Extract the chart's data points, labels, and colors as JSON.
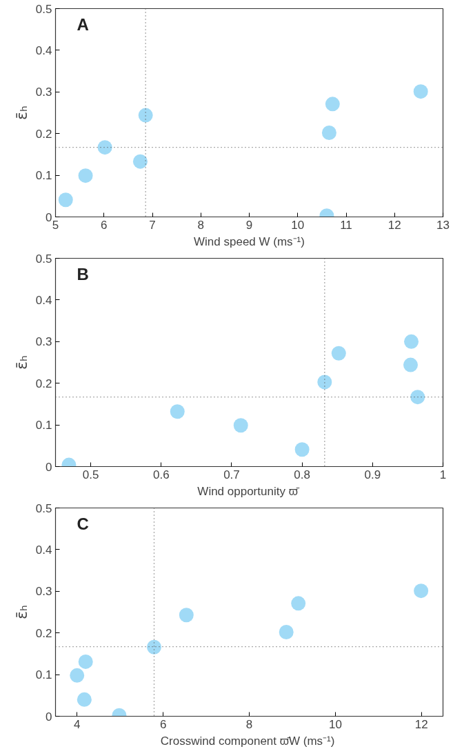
{
  "chart_data": [
    {
      "type": "scatter",
      "title": "A",
      "xlabel": "Wind speed W (ms⁻¹)",
      "ylabel": "ε̄ₕ",
      "marker": "circle",
      "grid": false,
      "xlim": [
        5,
        13
      ],
      "xticks": [
        5,
        6,
        7,
        8,
        9,
        10,
        11,
        12,
        13
      ],
      "ylim": [
        0,
        0.5
      ],
      "yticks": [
        0,
        0.1,
        0.2,
        0.3,
        0.4,
        0.5
      ],
      "series": [
        {
          "color": "#a0daf6",
          "x": [
            5.21,
            5.62,
            6.02,
            6.75,
            6.86,
            10.6,
            10.65,
            10.72,
            12.54
          ],
          "values": [
            0.041,
            0.099,
            0.167,
            0.133,
            0.244,
            0.003,
            0.202,
            0.271,
            0.301
          ]
        }
      ],
      "ref_lines": [
        {
          "axis": "y",
          "value": 0.167,
          "color": "#555555",
          "line_style": "dotted"
        },
        {
          "axis": "x",
          "value": 6.86,
          "color": "#555555",
          "line_style": "dotted"
        }
      ]
    },
    {
      "type": "scatter",
      "title": "B",
      "xlabel": "Wind opportunity  ϖ̄",
      "ylabel": "ε̄ₕ",
      "marker": "circle",
      "grid": false,
      "xlim": [
        0.45,
        1
      ],
      "xticks": [
        0.5,
        0.6,
        0.7,
        0.8,
        0.9,
        1
      ],
      "ylim": [
        0,
        0.5
      ],
      "yticks": [
        0,
        0.1,
        0.2,
        0.3,
        0.4,
        0.5
      ],
      "series": [
        {
          "color": "#a0daf6",
          "x": [
            0.469,
            0.623,
            0.713,
            0.8,
            0.832,
            0.852,
            0.955,
            0.954,
            0.964
          ],
          "values": [
            0.004,
            0.132,
            0.099,
            0.041,
            0.203,
            0.272,
            0.3,
            0.244,
            0.167
          ]
        }
      ],
      "ref_lines": [
        {
          "axis": "y",
          "value": 0.167,
          "color": "#555555",
          "line_style": "dotted"
        },
        {
          "axis": "x",
          "value": 0.832,
          "color": "#555555",
          "line_style": "dotted"
        }
      ]
    },
    {
      "type": "scatter",
      "title": "C",
      "xlabel": "Crosswind component  ϖ̄W (ms⁻¹)",
      "ylabel": "ε̄ₕ",
      "marker": "circle",
      "grid": false,
      "xlim": [
        3.5,
        12.5
      ],
      "xticks": [
        4,
        6,
        8,
        10,
        12
      ],
      "ylim": [
        0,
        0.5
      ],
      "yticks": [
        0,
        0.1,
        0.2,
        0.3,
        0.4,
        0.5
      ],
      "series": [
        {
          "color": "#a0daf6",
          "x": [
            4.0,
            4.2,
            4.17,
            4.98,
            5.79,
            6.54,
            8.86,
            9.14,
            11.99
          ],
          "values": [
            0.098,
            0.131,
            0.04,
            0.002,
            0.166,
            0.243,
            0.202,
            0.271,
            0.301
          ]
        }
      ],
      "ref_lines": [
        {
          "axis": "y",
          "value": 0.167,
          "color": "#555555",
          "line_style": "dotted"
        },
        {
          "axis": "x",
          "value": 5.79,
          "color": "#555555",
          "line_style": "dotted"
        }
      ]
    }
  ]
}
